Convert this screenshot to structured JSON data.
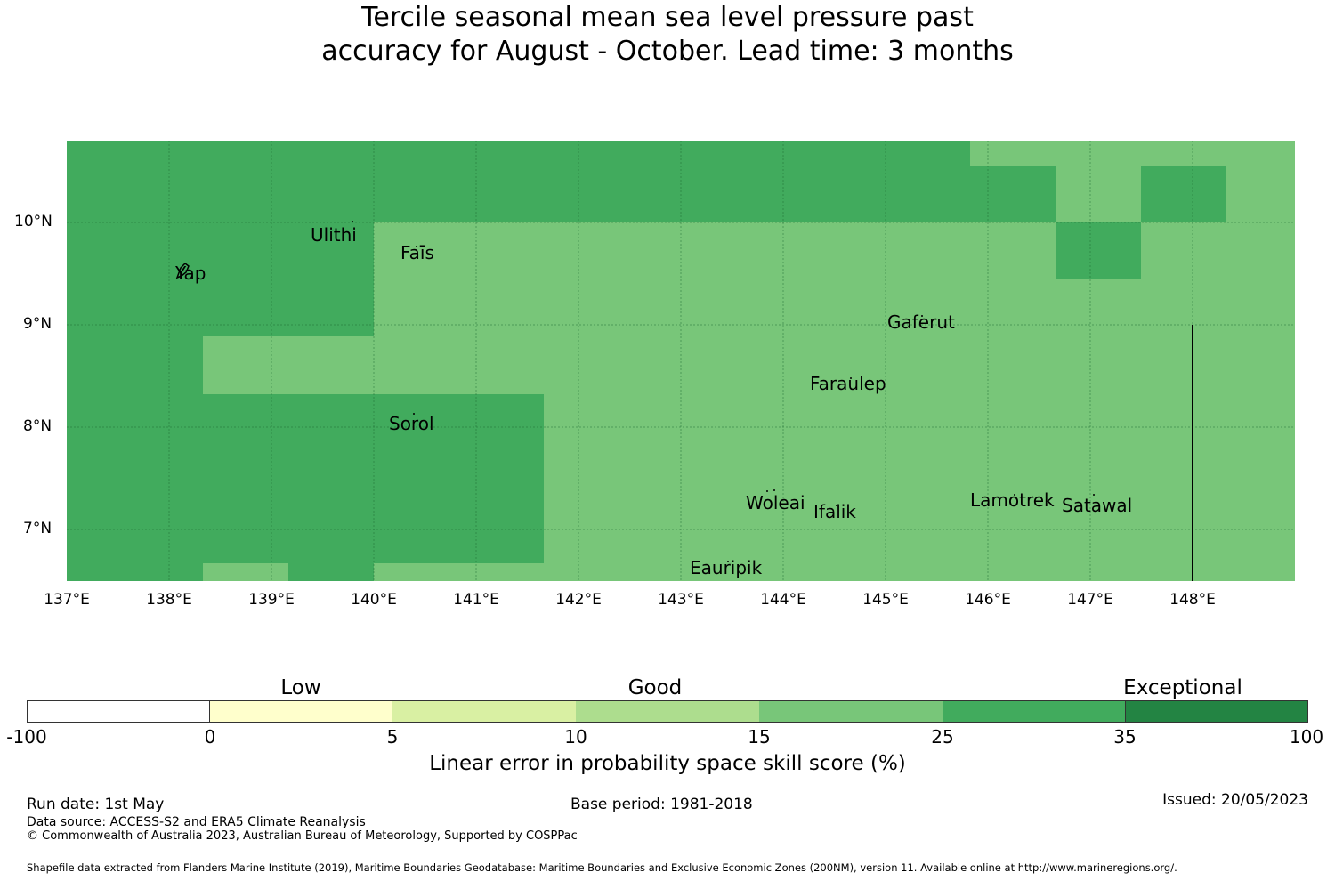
{
  "title": {
    "line1": "Tercile seasonal mean sea level pressure past",
    "line2": "accuracy for August - October. Lead time: 3 months"
  },
  "map": {
    "lon_labels": [
      "137°E",
      "138°E",
      "139°E",
      "140°E",
      "141°E",
      "142°E",
      "143°E",
      "144°E",
      "145°E",
      "146°E",
      "147°E",
      "148°E"
    ],
    "lat_labels": [
      "10°N",
      "9°N",
      "8°N",
      "7°N"
    ],
    "lon_range": [
      137,
      149
    ],
    "lat_range": [
      6.5,
      10.8
    ],
    "gridlines": true,
    "skill_cells_note": "Grid cells colored by skill category",
    "places": [
      {
        "name": "Ulithi"
      },
      {
        "name": "Yap"
      },
      {
        "name": "Faīs"
      },
      {
        "name": "Gaferut"
      },
      {
        "name": "Faraulep"
      },
      {
        "name": "Sorol"
      },
      {
        "name": "Woleai"
      },
      {
        "name": "Ifalik"
      },
      {
        "name": "Lamotrek"
      },
      {
        "name": "Satawal"
      },
      {
        "name": "Eauripik"
      }
    ],
    "colors": {
      "band_15_25": "#78c679",
      "band_25_35": "#41ab5d",
      "grid": "#1e6b33",
      "boundary": "#000000"
    }
  },
  "colorbar": {
    "categories": [
      "Low",
      "Good",
      "Exceptional"
    ],
    "ticks": [
      "-100",
      "0",
      "5",
      "10",
      "15",
      "25",
      "35",
      "100"
    ],
    "colors": [
      "#ffffff",
      "#ffffcc",
      "#d9f0a3",
      "#addd8e",
      "#78c679",
      "#41ab5d",
      "#238443"
    ],
    "label": "Linear error in probability space skill score (%)"
  },
  "footer": {
    "run_date": "Run date: 1st May",
    "base_period": "Base period: 1981-2018",
    "issued": "Issued: 20/05/2023",
    "data_source": "Data source: ACCESS-S2 and ERA5 Climate Reanalysis",
    "copyright": "© Commonwealth of Australia 2023, Australian Bureau of Meteorology, Supported by COSPPac",
    "shapefile": "Shapefile data extracted from Flanders Marine Institute (2019), Maritime Boundaries Geodatabase: Maritime Boundaries and Exclusive Economic Zones (200NM), version 11. Available online at http://www.marineregions.org/."
  }
}
